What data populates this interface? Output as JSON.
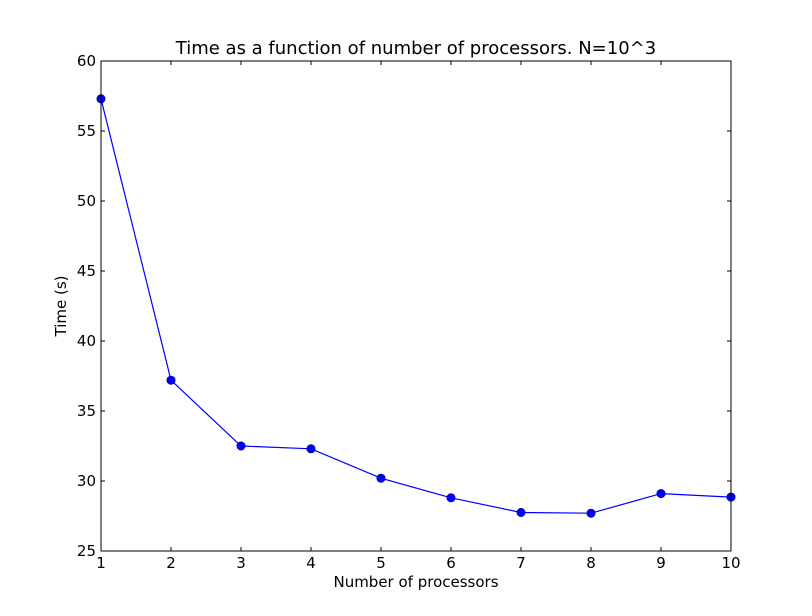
{
  "chart_data": {
    "type": "line",
    "title": "Time as a function of number of processors. N=10^3",
    "xlabel": "Number of processors",
    "ylabel": "Time (s)",
    "xlim": [
      1,
      10
    ],
    "ylim": [
      25,
      60
    ],
    "xticks": [
      1,
      2,
      3,
      4,
      5,
      6,
      7,
      8,
      9,
      10
    ],
    "yticks": [
      25,
      30,
      35,
      40,
      45,
      50,
      55,
      60
    ],
    "grid": false,
    "legend": "none",
    "series": [
      {
        "x": [
          1,
          2,
          3,
          4,
          5,
          6,
          7,
          8,
          9,
          10
        ],
        "values": [
          57.3,
          37.2,
          32.5,
          32.3,
          30.2,
          28.8,
          27.75,
          27.7,
          29.1,
          28.85
        ],
        "color": "#0000ff",
        "marker": "circle"
      }
    ]
  }
}
